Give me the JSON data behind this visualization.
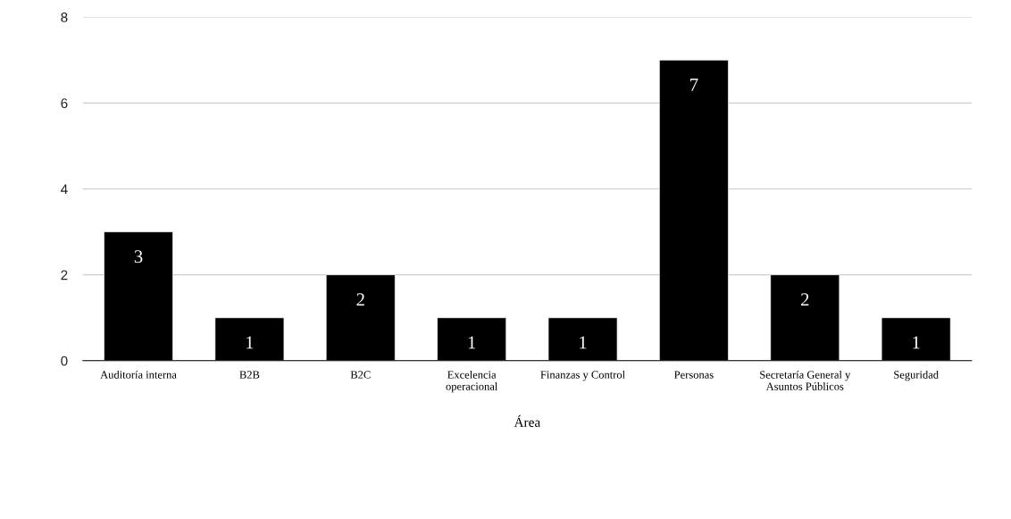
{
  "chart_data": {
    "type": "bar",
    "xlabel": "Área",
    "categories": [
      "Auditoría interna",
      "B2B",
      "B2C",
      "Excelencia\noperacional",
      "Finanzas y Control",
      "Personas",
      "Secretaría General y\nAsuntos Públicos",
      "Seguridad"
    ],
    "values": [
      3,
      1,
      2,
      1,
      1,
      7,
      2,
      1
    ],
    "color": "#000000",
    "ylim": [
      0,
      8
    ],
    "yticks": [
      0,
      2,
      4,
      6,
      8
    ],
    "grid": "y",
    "data_labels": true
  }
}
